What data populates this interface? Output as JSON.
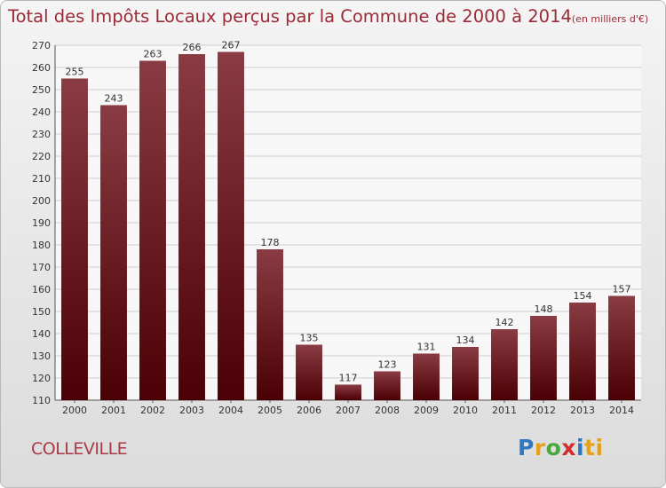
{
  "title": "Total des Impôts Locaux perçus par la Commune de 2000 à 2014",
  "title_unit": "(en milliers d'€)",
  "commune": "COLLEVILLE",
  "logo": [
    "P",
    "r",
    "o",
    "x",
    "i",
    "ti"
  ],
  "colors": {
    "bar_top": "#8a3b43",
    "bar_bottom": "#4a0004",
    "title": "#9a2b37"
  },
  "chart_data": {
    "type": "bar",
    "title": "Total des Impôts Locaux perçus par la Commune de 2000 à 2014",
    "categories": [
      "2000",
      "2001",
      "2002",
      "2003",
      "2004",
      "2005",
      "2006",
      "2007",
      "2008",
      "2009",
      "2010",
      "2011",
      "2012",
      "2013",
      "2014"
    ],
    "values": [
      255,
      243,
      263,
      266,
      267,
      178,
      135,
      117,
      123,
      131,
      134,
      142,
      148,
      154,
      157
    ],
    "ylim": [
      110,
      270
    ],
    "yticks": [
      110,
      120,
      130,
      140,
      150,
      160,
      170,
      180,
      190,
      200,
      210,
      220,
      230,
      240,
      250,
      260,
      270
    ],
    "grid": true,
    "xlabel": "",
    "ylabel": ""
  }
}
